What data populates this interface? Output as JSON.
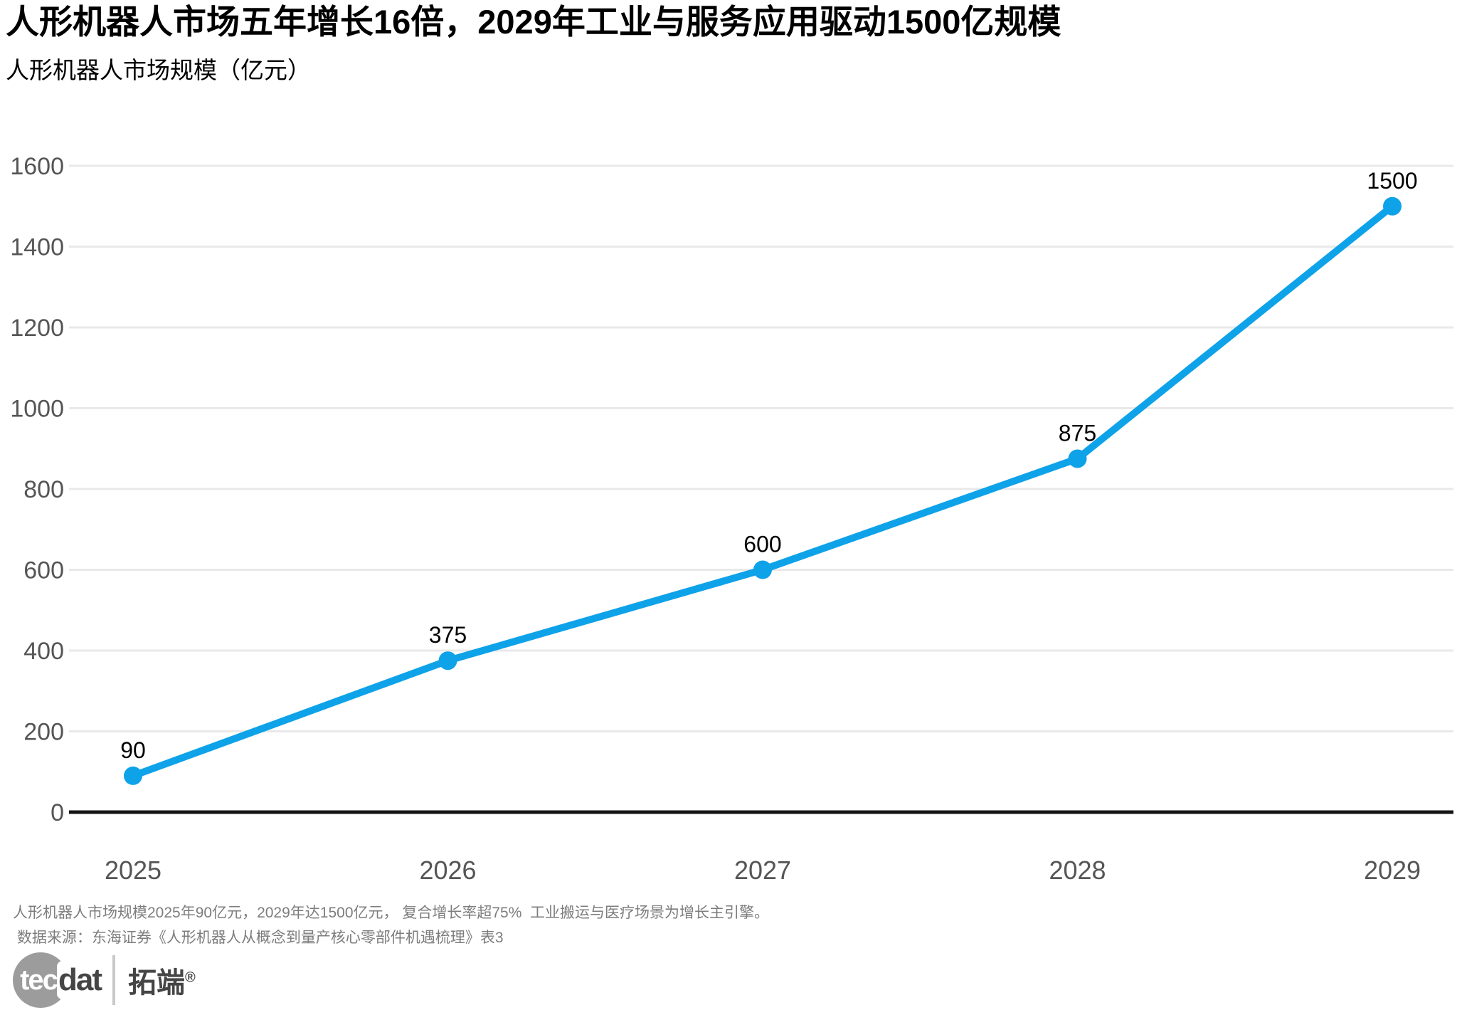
{
  "header": {
    "title": "人形机器人市场五年增长16倍，2029年工业与服务应用驱动1500亿规模",
    "subtitle": "人形机器人市场规模（亿元）"
  },
  "chart_data": {
    "type": "line",
    "title": "人形机器人市场规模（亿元）",
    "categories": [
      "2025",
      "2026",
      "2027",
      "2028",
      "2029"
    ],
    "values": [
      90,
      375,
      600,
      875,
      1500
    ],
    "xlabel": "",
    "ylabel": "亿元",
    "ylim": [
      0,
      1600
    ],
    "ytick_step": 200,
    "ytick_labels": [
      "0",
      "200",
      "400",
      "600",
      "800",
      "1000",
      "1200",
      "1400",
      "1600"
    ],
    "grid": true,
    "legend": "none",
    "colors": {
      "line": "#0ea2e9",
      "point": "#0ea2e9",
      "data_label": "#000000",
      "axis_label": "#555555",
      "gridline": "#e9e9e9",
      "axis_line": "#141414"
    }
  },
  "footer": {
    "note": "人形机器人市场规模2025年90亿元，2029年达1500亿元， 复合增长率超75%  工业搬运与医疗场景为增长主引擎。",
    "source": " 数据来源：东海证券《人形机器人从概念到量产核心零部件机遇梳理》表3"
  },
  "logo": {
    "circle_text": "tec",
    "suffix_text": "dat",
    "cn_text": "拓端",
    "reg_mark": "®"
  }
}
